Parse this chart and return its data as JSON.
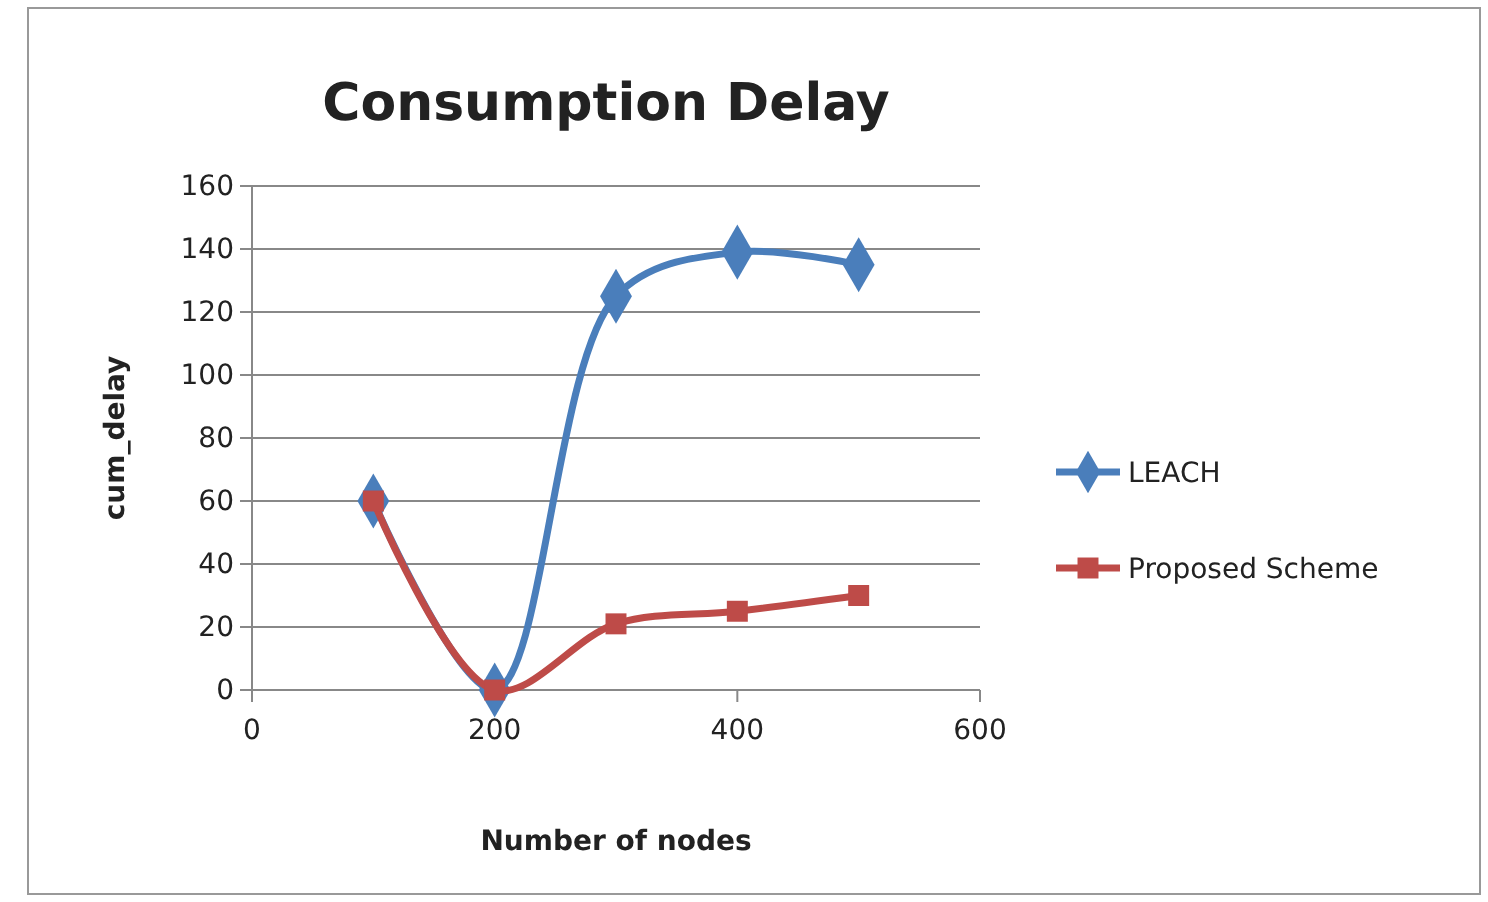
{
  "chart_data": {
    "type": "line",
    "title": "Consumption Delay",
    "xlabel": "Number of nodes",
    "ylabel": "cum_delay",
    "x": [
      100,
      200,
      300,
      400,
      500
    ],
    "series": [
      {
        "name": "LEACH",
        "color": "#4a7ebb",
        "marker": "diamond",
        "values": [
          60,
          0,
          125,
          139,
          135
        ]
      },
      {
        "name": "Proposed Scheme",
        "color": "#be4b48",
        "marker": "square",
        "values": [
          60,
          0,
          21,
          25,
          30
        ]
      }
    ],
    "xlim": [
      0,
      600
    ],
    "xticks": [
      0,
      200,
      400,
      600
    ],
    "ylim": [
      0,
      160
    ],
    "yticks": [
      0,
      20,
      40,
      60,
      80,
      100,
      120,
      140,
      160
    ],
    "grid": "y",
    "legend": "right"
  }
}
